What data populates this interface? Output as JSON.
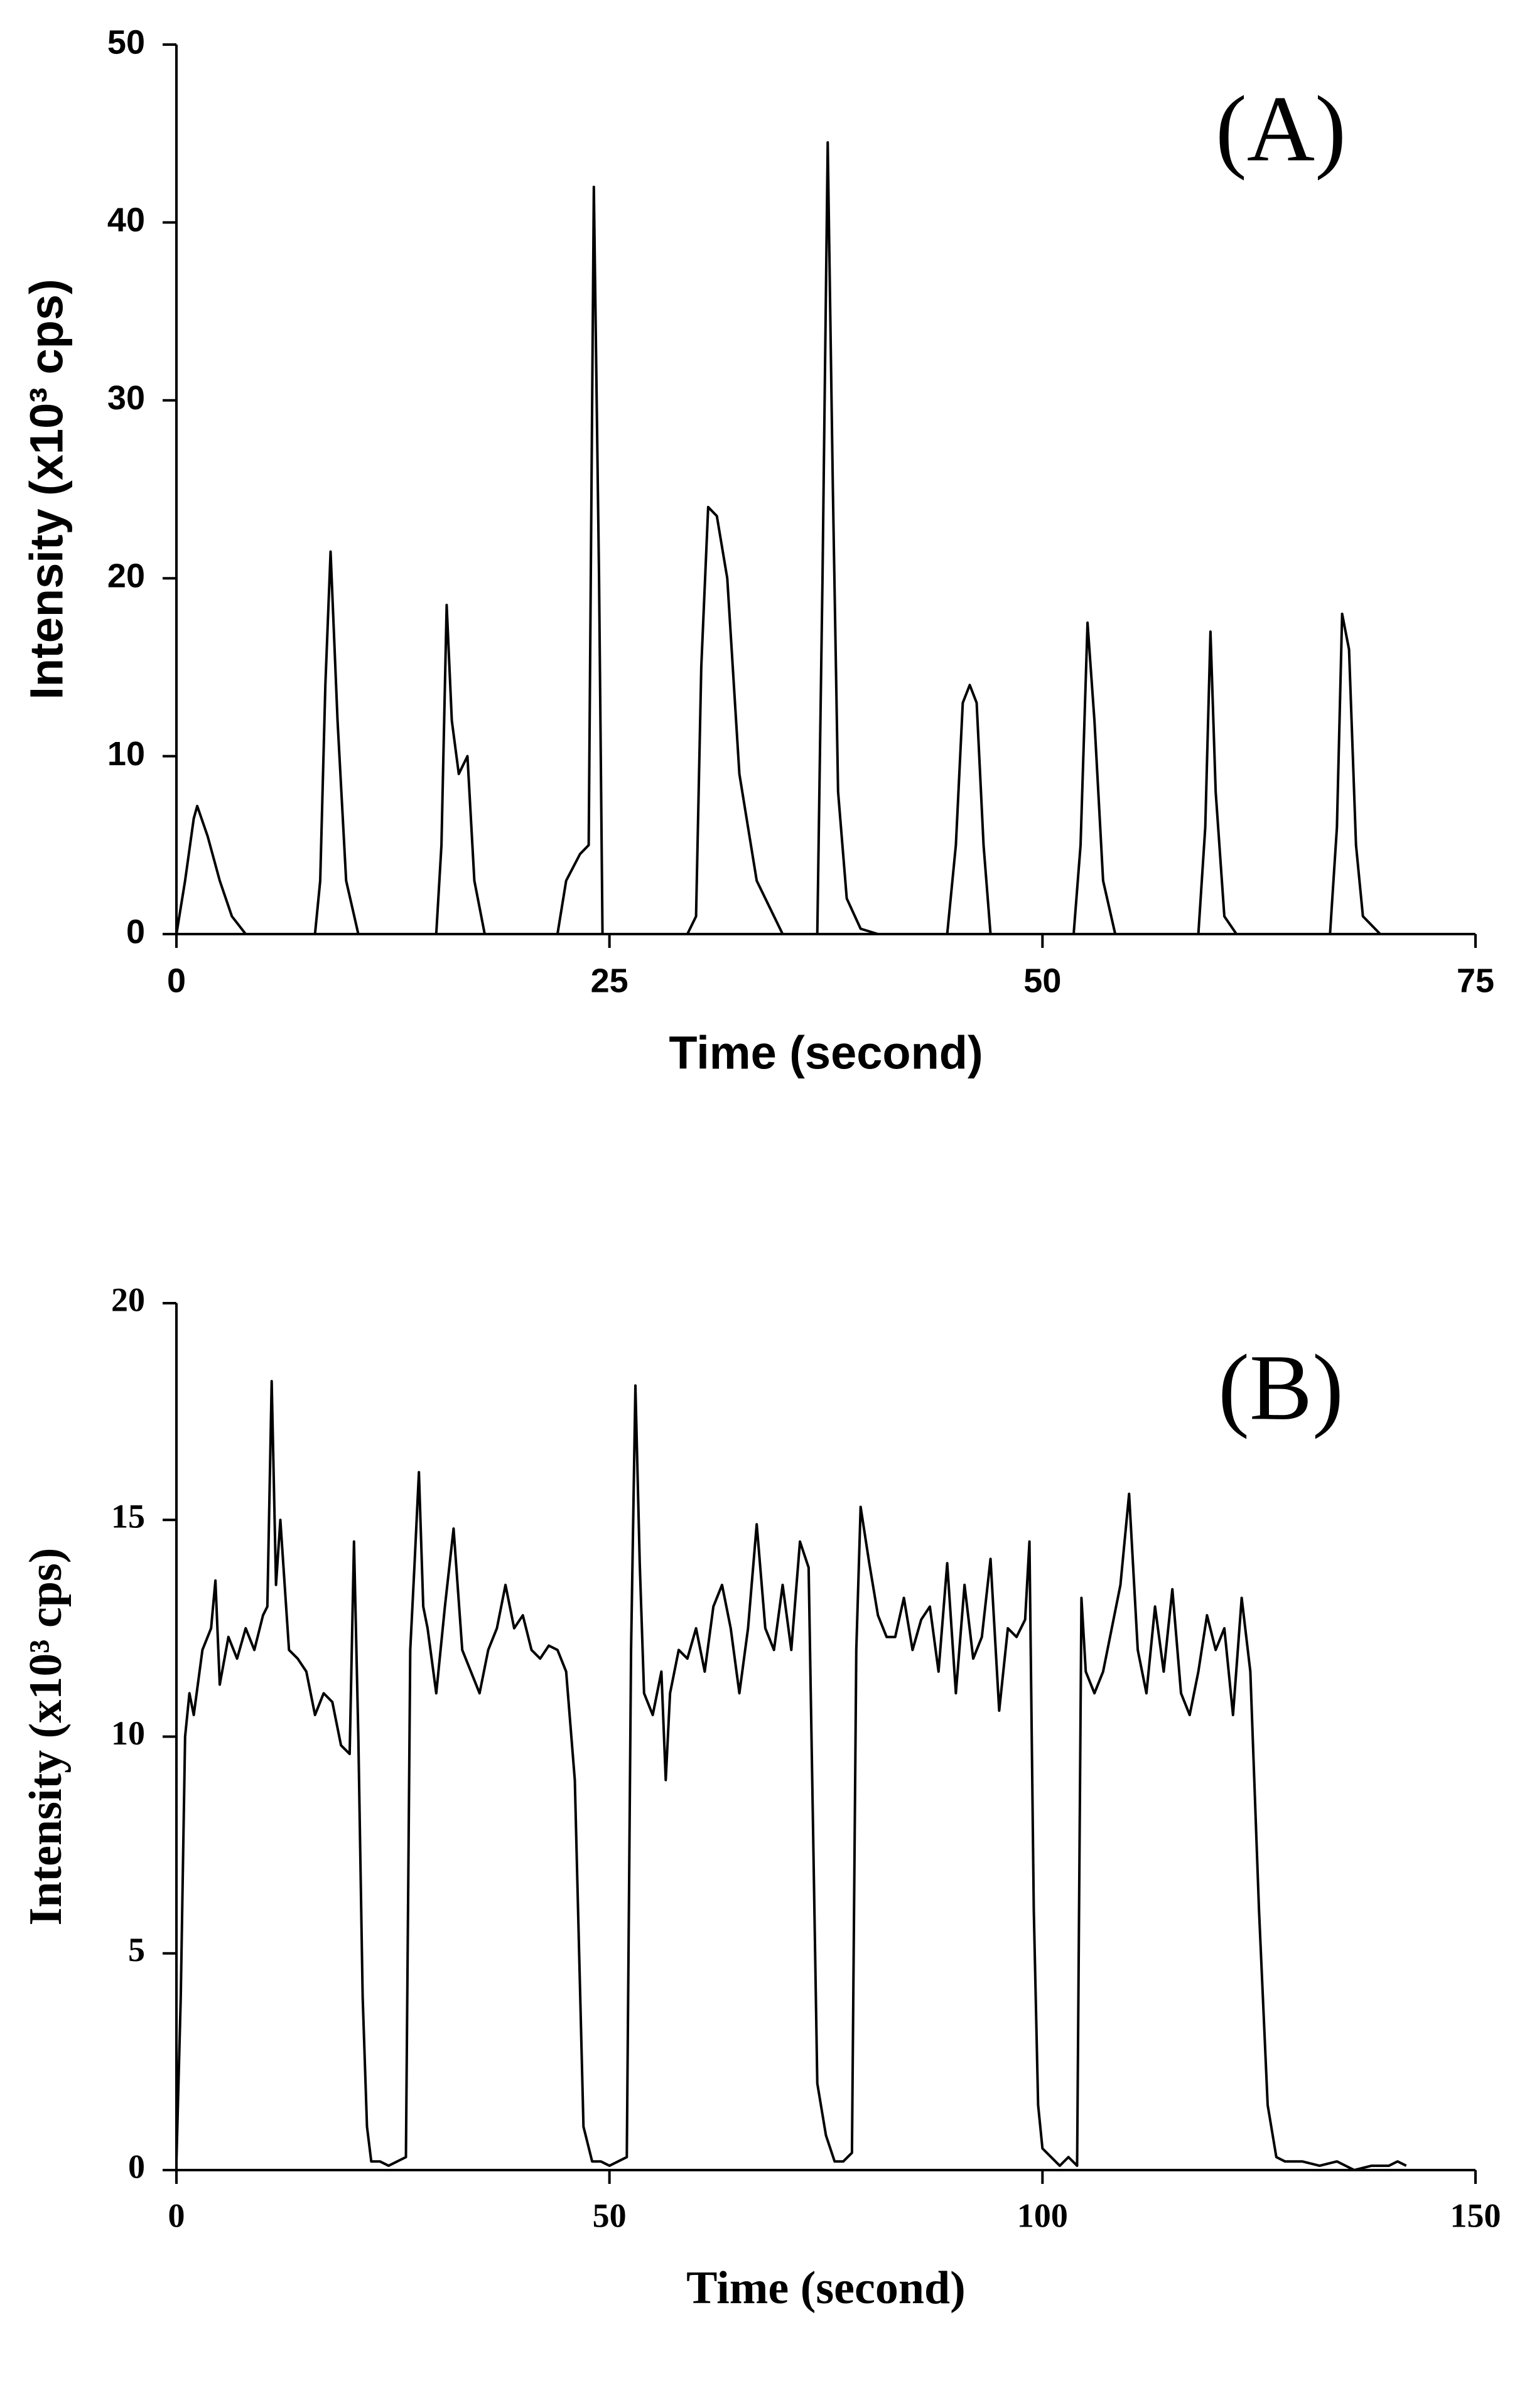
{
  "chart_data": [
    {
      "type": "line",
      "annotation": "(A)",
      "xlabel": "Time (second)",
      "ylabel": "Intensity (x10³ cps)",
      "xlim": [
        0,
        75
      ],
      "ylim": [
        0,
        50
      ],
      "xticks": [
        0,
        25,
        50,
        75
      ],
      "yticks": [
        0,
        10,
        20,
        30,
        40,
        50
      ],
      "color": "#000000",
      "x": [
        0,
        0.5,
        1,
        1.2,
        1.8,
        2.5,
        3.2,
        4,
        8,
        8.3,
        8.6,
        8.9,
        9.3,
        9.8,
        10.5,
        15,
        15.3,
        15.6,
        15.9,
        16.3,
        16.8,
        17.2,
        17.8,
        22,
        22.5,
        23.3,
        23.8,
        24.1,
        24.4,
        24.6,
        29.5,
        30,
        30.3,
        30.7,
        31.2,
        31.8,
        32.5,
        33.5,
        35,
        37,
        37.3,
        37.6,
        37.9,
        38.2,
        38.7,
        39.5,
        40.5,
        44.5,
        45,
        45.4,
        45.8,
        46.2,
        46.6,
        47,
        51.8,
        52.2,
        52.6,
        53,
        53.5,
        54.2,
        59,
        59.4,
        59.7,
        60,
        60.5,
        61.2,
        66.6,
        67,
        67.3,
        67.7,
        68.1,
        68.5,
        69.5,
        75
      ],
      "values": [
        0,
        3,
        6.5,
        7.2,
        5.5,
        3,
        1,
        0,
        0,
        3,
        14,
        21.5,
        12,
        3,
        0,
        0,
        5,
        18.5,
        12,
        9,
        10,
        3,
        0,
        0,
        3,
        4.5,
        5,
        42,
        20,
        0,
        0,
        1,
        15,
        24,
        23.5,
        20,
        9,
        3,
        0,
        0,
        20,
        44.5,
        25,
        8,
        2,
        0.3,
        0,
        0,
        5,
        13,
        14,
        13,
        5,
        0,
        0,
        5,
        17.5,
        12,
        3,
        0,
        0,
        6,
        17,
        8,
        1,
        0,
        0,
        6,
        18,
        16,
        5,
        1,
        0,
        0
      ]
    },
    {
      "type": "line",
      "annotation": "(B)",
      "xlabel": "Time (second)",
      "ylabel": "Intensity (x10³ cps)",
      "xlim": [
        0,
        150
      ],
      "ylim": [
        0,
        20
      ],
      "xticks": [
        0,
        50,
        100,
        150
      ],
      "yticks": [
        0,
        5,
        10,
        15,
        20
      ],
      "color": "#000000",
      "x": [
        0,
        0.5,
        1,
        1.5,
        2,
        3,
        4,
        4.5,
        5,
        6,
        7,
        8,
        9,
        10,
        10.5,
        11,
        11.5,
        12,
        13,
        14,
        15,
        16,
        17,
        18,
        19,
        20,
        20.5,
        21,
        21.5,
        22,
        22.5,
        23.5,
        24.5,
        25.5,
        26.5,
        27,
        27.5,
        28,
        28.5,
        29,
        30,
        31,
        32,
        33,
        34,
        35,
        36,
        37,
        38,
        39,
        40,
        41,
        42,
        43,
        44,
        45,
        46,
        46.5,
        47,
        48,
        49,
        50,
        51,
        52,
        52.5,
        53,
        53.5,
        54,
        55,
        56,
        56.5,
        57,
        58,
        59,
        60,
        61,
        62,
        63,
        64,
        65,
        66,
        67,
        68,
        69,
        70,
        71,
        72,
        73,
        73.5,
        74,
        75,
        76,
        77,
        78,
        78.5,
        79,
        80,
        81,
        82,
        83,
        84,
        85,
        86,
        87,
        88,
        89,
        90,
        91,
        92,
        93,
        94,
        95,
        96,
        97,
        98,
        98.5,
        99,
        99.5,
        100,
        101,
        102,
        103,
        104,
        104.5,
        105,
        106,
        107,
        108,
        109,
        110,
        111,
        112,
        113,
        114,
        115,
        116,
        117,
        118,
        119,
        120,
        121,
        122,
        123,
        124,
        125,
        126,
        127,
        128,
        130,
        132,
        134,
        136,
        138,
        140,
        141,
        142
      ],
      "values": [
        0.2,
        4,
        10,
        11,
        10.5,
        12,
        12.5,
        13.6,
        11.2,
        12.3,
        11.8,
        12.5,
        12,
        12.8,
        13,
        18.2,
        13.5,
        15,
        12,
        11.8,
        11.5,
        10.5,
        11,
        10.8,
        9.8,
        9.6,
        14.5,
        10,
        4,
        1,
        0.2,
        0.2,
        0.1,
        0.2,
        0.3,
        12,
        14,
        16.1,
        13,
        12.5,
        11,
        13,
        14.8,
        12,
        11.5,
        11,
        12,
        12.5,
        13.5,
        12.5,
        12.8,
        12,
        11.8,
        12.1,
        12,
        11.5,
        9,
        5,
        1,
        0.2,
        0.2,
        0.1,
        0.2,
        0.3,
        12,
        18.1,
        14,
        11,
        10.5,
        11.5,
        9,
        11,
        12,
        11.8,
        12.5,
        11.5,
        13,
        13.5,
        12.5,
        11,
        12.5,
        14.9,
        12.5,
        12,
        13.5,
        12,
        14.5,
        13.9,
        8,
        2,
        0.8,
        0.2,
        0.2,
        0.4,
        12,
        15.3,
        14,
        12.8,
        12.3,
        12.3,
        13.2,
        12,
        12.7,
        13,
        11.5,
        14,
        11,
        13.5,
        11.8,
        12.3,
        14.1,
        10.6,
        12.5,
        12.3,
        12.7,
        14.5,
        6,
        1.5,
        0.5,
        0.3,
        0.1,
        0.3,
        0.1,
        13.2,
        11.5,
        11,
        11.5,
        12.5,
        13.5,
        15.6,
        12,
        11,
        13,
        11.5,
        13.4,
        11,
        10.5,
        11.5,
        12.8,
        12,
        12.5,
        10.5,
        13.2,
        11.5,
        6,
        1.5,
        0.3,
        0.2,
        0.2,
        0.1,
        0.2,
        0,
        0.1,
        0.1,
        0.2,
        0.1
      ]
    }
  ]
}
